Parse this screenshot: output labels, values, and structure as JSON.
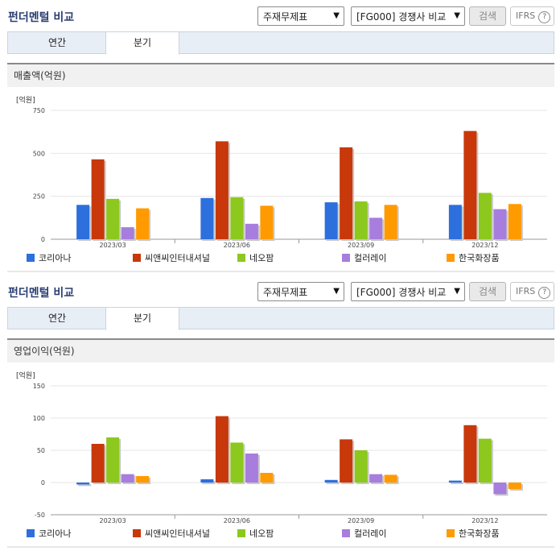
{
  "sections": [
    {
      "title": "펀더멘털 비교",
      "select1": "주재무제표",
      "select2": "[FG000] 경쟁사 비교",
      "search_label": "검색",
      "ifrs_label": "IFRS",
      "help_glyph": "?",
      "tabs": [
        {
          "label": "연간",
          "active": false
        },
        {
          "label": "분기",
          "active": true
        }
      ],
      "subtitle": "매출액(억원)",
      "chart_data": {
        "type": "bar",
        "title": "매출액(억원)",
        "unit_label": "[억원]",
        "categories": [
          "2023/03",
          "2023/06",
          "2023/09",
          "2023/12"
        ],
        "ylim": [
          0,
          750
        ],
        "yticks": [
          0,
          250,
          500,
          750
        ],
        "grid": true,
        "legend_position": "bottom",
        "series": [
          {
            "name": "코리아나",
            "color": "#2d6fdd",
            "values": [
              200,
              240,
              215,
              200
            ]
          },
          {
            "name": "씨앤씨인터내셔널",
            "color": "#c8380a",
            "values": [
              465,
              570,
              535,
              630
            ]
          },
          {
            "name": "네오팜",
            "color": "#8cc81e",
            "values": [
              235,
              245,
              220,
              270
            ]
          },
          {
            "name": "컬러레이",
            "color": "#a77ddd",
            "values": [
              70,
              90,
              125,
              175
            ]
          },
          {
            "name": "한국화장품",
            "color": "#ff9a00",
            "values": [
              180,
              195,
              200,
              205
            ]
          }
        ]
      }
    },
    {
      "title": "펀더멘털 비교",
      "select1": "주재무제표",
      "select2": "[FG000] 경쟁사 비교",
      "search_label": "검색",
      "ifrs_label": "IFRS",
      "help_glyph": "?",
      "tabs": [
        {
          "label": "연간",
          "active": false
        },
        {
          "label": "분기",
          "active": true
        }
      ],
      "subtitle": "영업이익(억원)",
      "chart_data": {
        "type": "bar",
        "title": "영업이익(억원)",
        "unit_label": "[억원]",
        "categories": [
          "2023/03",
          "2023/06",
          "2023/09",
          "2023/12"
        ],
        "ylim": [
          -50,
          150
        ],
        "yticks": [
          -50,
          0,
          50,
          100,
          150
        ],
        "grid": true,
        "legend_position": "bottom",
        "series": [
          {
            "name": "코리아나",
            "color": "#2d6fdd",
            "values": [
              -3,
              5,
              4,
              3
            ]
          },
          {
            "name": "씨앤씨인터내셔널",
            "color": "#c8380a",
            "values": [
              60,
              103,
              67,
              89
            ]
          },
          {
            "name": "네오팜",
            "color": "#8cc81e",
            "values": [
              70,
              62,
              50,
              68
            ]
          },
          {
            "name": "컬러레이",
            "color": "#a77ddd",
            "values": [
              13,
              45,
              13,
              -18
            ]
          },
          {
            "name": "한국화장품",
            "color": "#ff9a00",
            "values": [
              10,
              15,
              12,
              -10
            ]
          }
        ]
      }
    }
  ]
}
